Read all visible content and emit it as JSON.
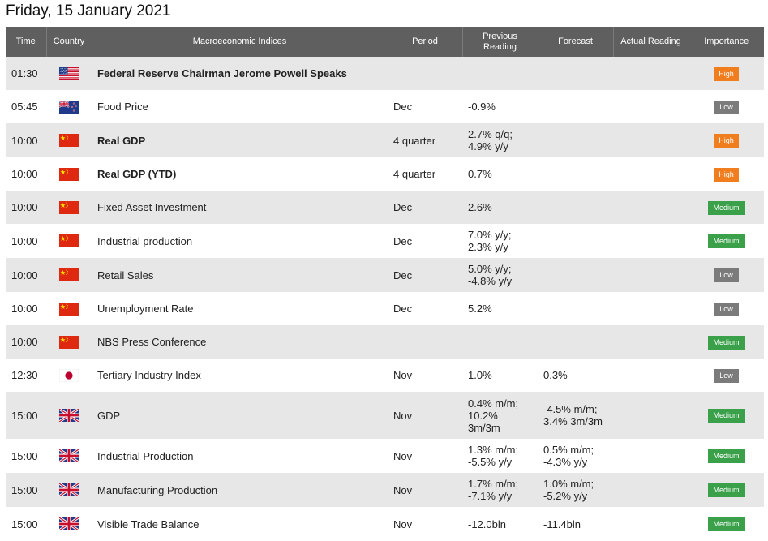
{
  "page_title": "Friday, 15 January 2021",
  "headers": {
    "time": "Time",
    "country": "Country",
    "indices": "Macroeconomic Indices",
    "period": "Period",
    "previous_line1": "Previous",
    "previous_line2": "Reading",
    "forecast": "Forecast",
    "actual": "Actual Reading",
    "importance": "Importance"
  },
  "rows": [
    {
      "time": "01:30",
      "flag": "us-flag-icon",
      "name": "Federal Reserve Chairman Jerome Powell Speaks",
      "bold": true,
      "period": "",
      "previous": [],
      "forecast": [],
      "actual": "",
      "importance": "High"
    },
    {
      "time": "05:45",
      "flag": "nz-flag-icon",
      "name": "Food Price",
      "bold": false,
      "period": "Dec",
      "previous": [
        "-0.9%"
      ],
      "forecast": [],
      "actual": "",
      "importance": "Low"
    },
    {
      "time": "10:00",
      "flag": "cn-flag-icon",
      "name": "Real GDP",
      "bold": true,
      "period": "4 quarter",
      "previous": [
        "2.7% q/q;",
        "4.9% y/y"
      ],
      "forecast": [],
      "actual": "",
      "importance": "High"
    },
    {
      "time": "10:00",
      "flag": "cn-flag-icon",
      "name": "Real GDP (YTD)",
      "bold": true,
      "period": "4 quarter",
      "previous": [
        "0.7%"
      ],
      "forecast": [],
      "actual": "",
      "importance": "High"
    },
    {
      "time": "10:00",
      "flag": "cn-flag-icon",
      "name": "Fixed Asset Investment",
      "bold": false,
      "period": "Dec",
      "previous": [
        "2.6%"
      ],
      "forecast": [],
      "actual": "",
      "importance": "Medium"
    },
    {
      "time": "10:00",
      "flag": "cn-flag-icon",
      "name": "Industrial production",
      "bold": false,
      "period": "Dec",
      "previous": [
        "7.0% y/y;",
        "2.3% y/y"
      ],
      "forecast": [],
      "actual": "",
      "importance": "Medium"
    },
    {
      "time": "10:00",
      "flag": "cn-flag-icon",
      "name": "Retail Sales",
      "bold": false,
      "period": "Dec",
      "previous": [
        "5.0% y/y;",
        "-4.8% y/y"
      ],
      "forecast": [],
      "actual": "",
      "importance": "Low"
    },
    {
      "time": "10:00",
      "flag": "cn-flag-icon",
      "name": "Unemployment Rate",
      "bold": false,
      "period": "Dec",
      "previous": [
        "5.2%"
      ],
      "forecast": [],
      "actual": "",
      "importance": "Low"
    },
    {
      "time": "10:00",
      "flag": "cn-flag-icon",
      "name": "NBS Press Conference",
      "bold": false,
      "period": "",
      "previous": [],
      "forecast": [],
      "actual": "",
      "importance": "Medium"
    },
    {
      "time": "12:30",
      "flag": "jp-flag-icon",
      "name": "Tertiary Industry Index",
      "bold": false,
      "period": "Nov",
      "previous": [
        "1.0%"
      ],
      "forecast": [
        "0.3%"
      ],
      "actual": "",
      "importance": "Low"
    },
    {
      "time": "15:00",
      "flag": "uk-flag-icon",
      "name": "GDP",
      "bold": false,
      "period": "Nov",
      "previous": [
        "0.4% m/m;",
        "10.2%",
        "3m/3m"
      ],
      "forecast": [
        "-4.5% m/m;",
        "3.4% 3m/3m"
      ],
      "actual": "",
      "importance": "Medium"
    },
    {
      "time": "15:00",
      "flag": "uk-flag-icon",
      "name": "Industrial Production",
      "bold": false,
      "period": "Nov",
      "previous": [
        "1.3% m/m;",
        "-5.5% y/y"
      ],
      "forecast": [
        "0.5% m/m;",
        "-4.3% y/y"
      ],
      "actual": "",
      "importance": "Medium"
    },
    {
      "time": "15:00",
      "flag": "uk-flag-icon",
      "name": "Manufacturing Production",
      "bold": false,
      "period": "Nov",
      "previous": [
        "1.7% m/m;",
        "-7.1% y/y"
      ],
      "forecast": [
        "1.0% m/m;",
        "-5.2% y/y"
      ],
      "actual": "",
      "importance": "Medium"
    },
    {
      "time": "15:00",
      "flag": "uk-flag-icon",
      "name": "Visible Trade Balance",
      "bold": false,
      "period": "Nov",
      "previous": [
        "-12.0bln"
      ],
      "forecast": [
        "-11.4bln"
      ],
      "actual": "",
      "importance": "Medium"
    }
  ],
  "colors": {
    "header_bg": "#5f5f5f",
    "row_alt": "#e7e7e7",
    "high": "#f07d1e",
    "low": "#7b7b7b",
    "medium": "#3aa04a"
  }
}
